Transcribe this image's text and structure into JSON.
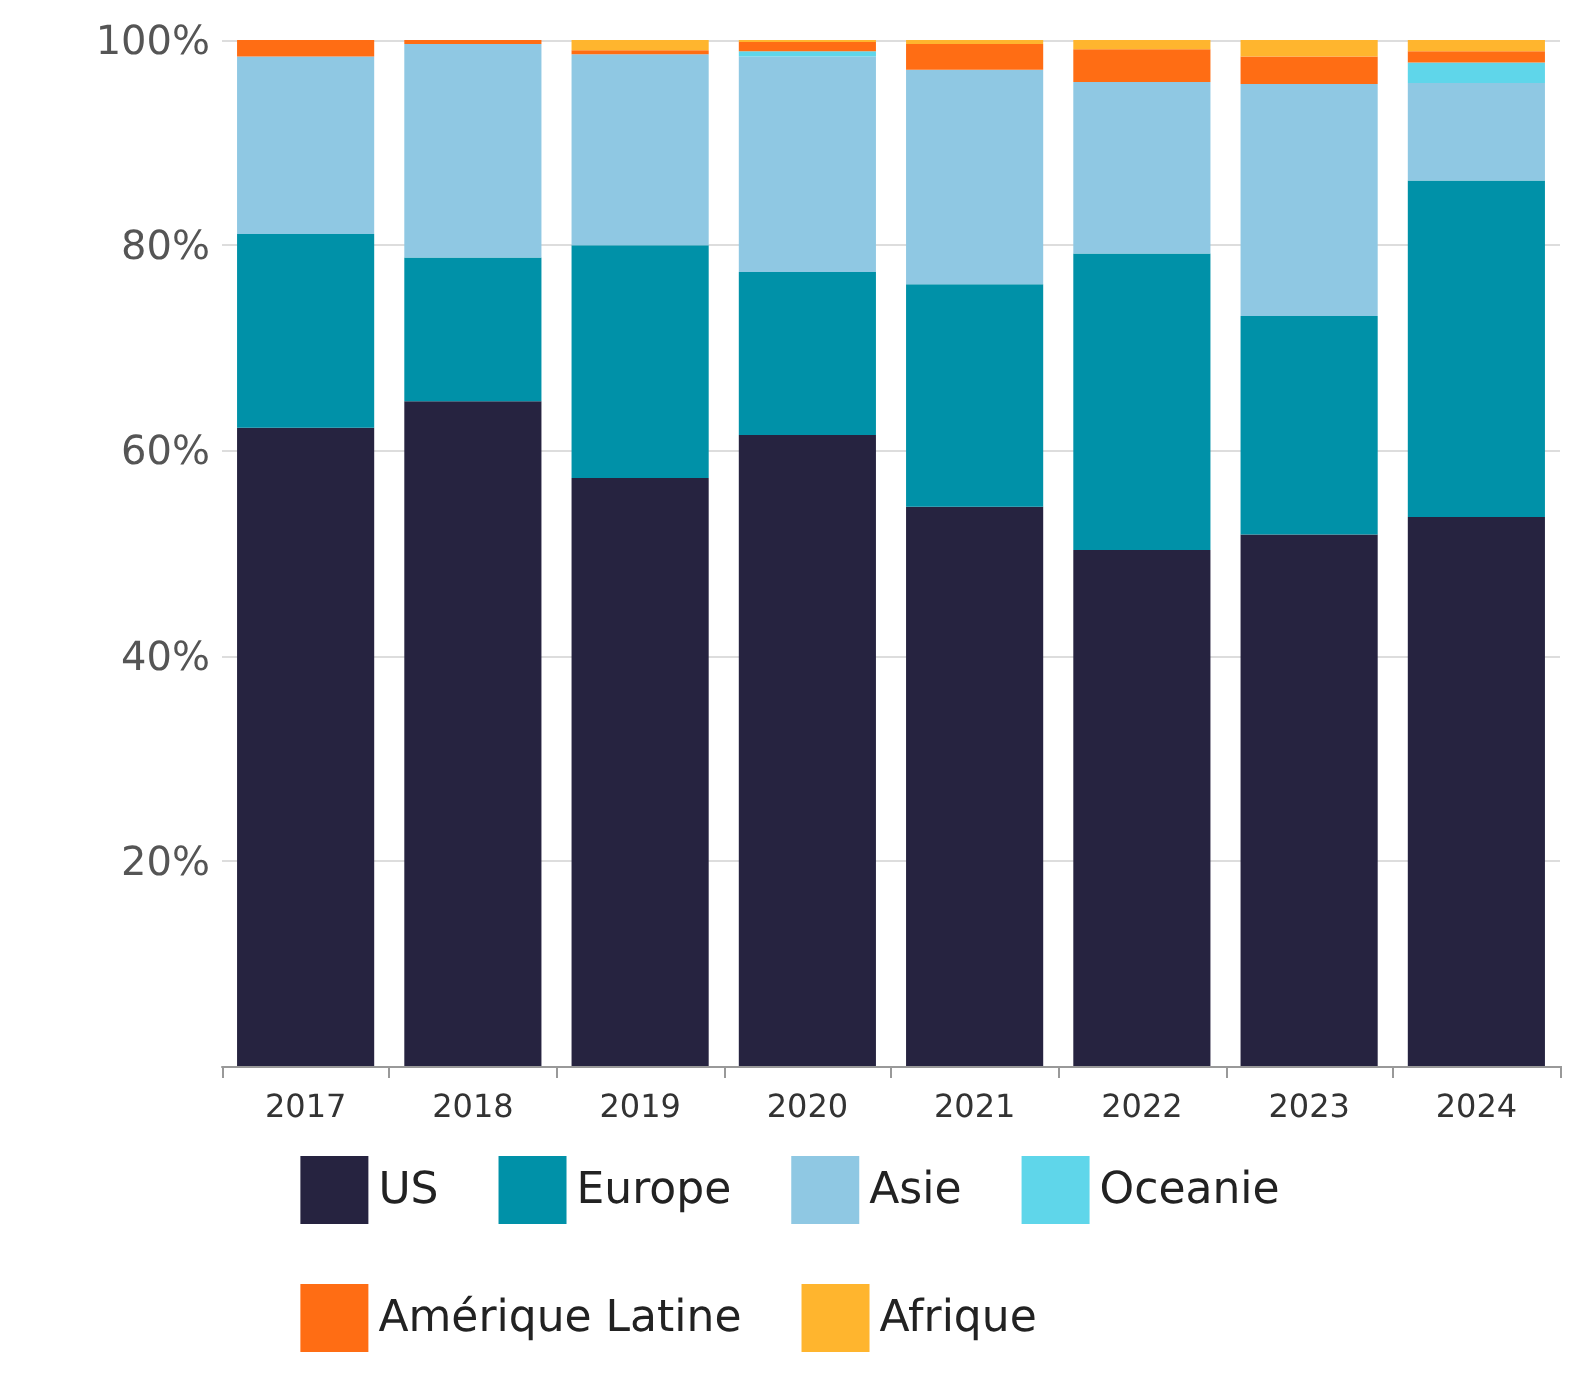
{
  "chart_data": {
    "type": "bar",
    "stacked": true,
    "categories": [
      "2017",
      "2018",
      "2019",
      "2020",
      "2021",
      "2022",
      "2023",
      "2024"
    ],
    "series": [
      {
        "name": "US",
        "color": "#262340",
        "values": [
          62.2,
          64.8,
          57.3,
          61.5,
          54.5,
          50.3,
          51.8,
          53.5
        ]
      },
      {
        "name": "Europe",
        "color": "#0091a8",
        "values": [
          18.9,
          14.0,
          22.7,
          15.9,
          21.7,
          28.9,
          21.3,
          32.8
        ]
      },
      {
        "name": "Asie",
        "color": "#8fc8e3",
        "values": [
          17.3,
          20.8,
          18.6,
          21.0,
          20.9,
          16.7,
          22.6,
          9.5
        ]
      },
      {
        "name": "Oceanie",
        "color": "#5fd6ea",
        "values": [
          0,
          0,
          0,
          0.5,
          0,
          0,
          0,
          2.0
        ]
      },
      {
        "name": "Amérique Latine",
        "color": "#ff6d14",
        "values": [
          1.6,
          0.4,
          0.4,
          0.9,
          2.5,
          3.2,
          2.7,
          1.1
        ]
      },
      {
        "name": "Afrique",
        "color": "#ffb52e",
        "values": [
          0,
          0,
          1.0,
          0.2,
          0.4,
          0.9,
          1.6,
          1.1
        ]
      }
    ],
    "ylim": [
      0,
      100
    ],
    "yticks": [
      {
        "value": 0,
        "label": null
      },
      {
        "value": 20,
        "label": "20%"
      },
      {
        "value": 40,
        "label": "40%"
      },
      {
        "value": 60,
        "label": "60%"
      },
      {
        "value": 80,
        "label": "80%"
      },
      {
        "value": 100,
        "label": "100%"
      }
    ],
    "grid": "y",
    "legend": "bottom"
  }
}
